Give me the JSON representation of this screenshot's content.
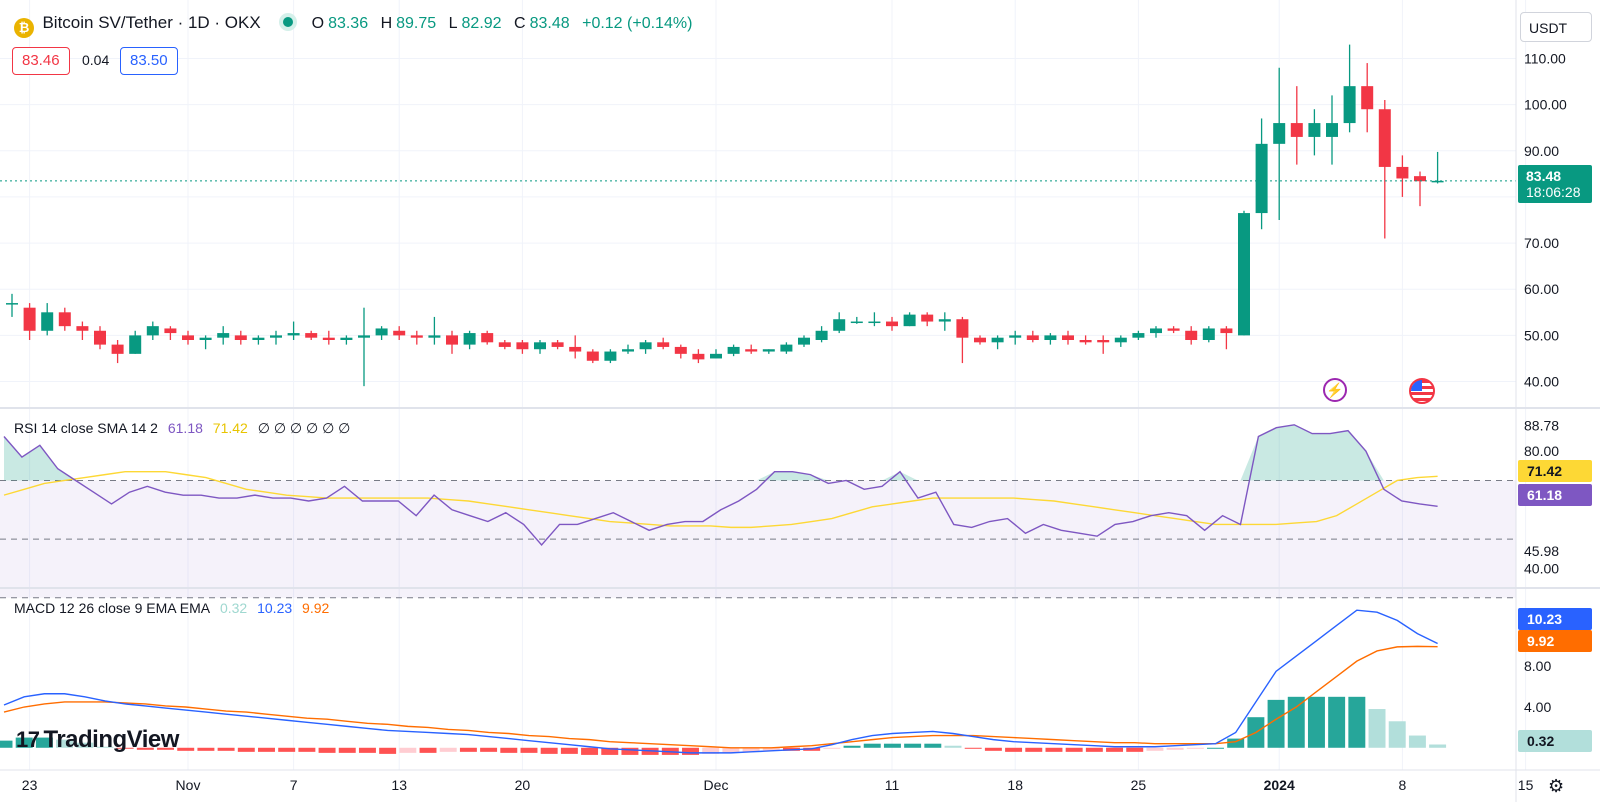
{
  "header": {
    "title": "Bitcoin SV/Tether · 1D · OKX",
    "ohlc": [
      {
        "label": "O",
        "value": "83.36"
      },
      {
        "label": "H",
        "value": "89.75"
      },
      {
        "label": "L",
        "value": "82.92"
      },
      {
        "label": "C",
        "value": "83.48"
      }
    ],
    "change": "+0.12 (+0.14%)",
    "bid": "83.46",
    "spread": "0.04",
    "ask": "83.50",
    "currency": "USDT"
  },
  "price_tag": {
    "price": "83.48",
    "countdown": "18:06:28"
  },
  "rsi_panel": {
    "label": "RSI 14 close SMA 14 2",
    "rsi_value": "61.18",
    "sma_value": "71.42",
    "extra": "∅ ∅ ∅ ∅ ∅ ∅",
    "axis_ticks": [
      "88.78",
      "80.00",
      "45.98",
      "40.00"
    ],
    "tag_rsi": "61.18",
    "tag_sma": "71.42"
  },
  "macd_panel": {
    "label": "MACD 12 26 close 9 EMA EMA",
    "hist_value": "0.32",
    "macd_value": "10.23",
    "signal_value": "9.92",
    "axis_ticks": [
      "8.00",
      "4.00"
    ],
    "tag_macd": "10.23",
    "tag_signal": "9.92",
    "tag_hist": "0.32"
  },
  "watermark": "TradingView",
  "colors": {
    "up": "#089981",
    "down": "#f23645",
    "rsi": "#7e57c2",
    "rsi_sma": "#fdd835",
    "macd": "#2962ff",
    "signal": "#ff6d00",
    "accent": "#2962ff"
  },
  "chart_data": {
    "type": "candlestick",
    "title": "Bitcoin SV/Tether · 1D · OKX",
    "y_axis": {
      "ticks": [
        40,
        50,
        60,
        70,
        80,
        90,
        100,
        110
      ],
      "ylim": [
        36,
        114
      ]
    },
    "x_axis": {
      "ticks": [
        "23",
        "Nov",
        "7",
        "13",
        "20",
        "Dec",
        "11",
        "18",
        "25",
        "2024",
        "8",
        "15"
      ]
    },
    "candles": [
      {
        "date": "2023-10-22",
        "o": 57,
        "h": 59,
        "l": 54,
        "c": 57
      },
      {
        "date": "2023-10-23",
        "o": 56,
        "h": 57,
        "l": 49,
        "c": 51
      },
      {
        "date": "2023-10-24",
        "o": 51,
        "h": 57,
        "l": 50,
        "c": 55
      },
      {
        "date": "2023-10-25",
        "o": 55,
        "h": 56,
        "l": 51,
        "c": 52
      },
      {
        "date": "2023-10-26",
        "o": 52,
        "h": 53,
        "l": 49,
        "c": 51
      },
      {
        "date": "2023-10-27",
        "o": 51,
        "h": 52,
        "l": 47,
        "c": 48
      },
      {
        "date": "2023-10-28",
        "o": 48,
        "h": 49,
        "l": 44,
        "c": 46
      },
      {
        "date": "2023-10-29",
        "o": 46,
        "h": 51,
        "l": 46,
        "c": 50
      },
      {
        "date": "2023-10-30",
        "o": 50,
        "h": 53,
        "l": 49,
        "c": 52
      },
      {
        "date": "2023-10-31",
        "o": 51.5,
        "h": 52,
        "l": 49,
        "c": 50.5
      },
      {
        "date": "2023-11-01",
        "o": 50,
        "h": 51,
        "l": 48,
        "c": 49
      },
      {
        "date": "2023-11-02",
        "o": 49,
        "h": 50,
        "l": 47,
        "c": 49.5
      },
      {
        "date": "2023-11-03",
        "o": 49.5,
        "h": 52,
        "l": 48,
        "c": 50.5
      },
      {
        "date": "2023-11-04",
        "o": 50,
        "h": 51,
        "l": 48,
        "c": 49
      },
      {
        "date": "2023-11-05",
        "o": 49,
        "h": 50,
        "l": 48,
        "c": 49.5
      },
      {
        "date": "2023-11-06",
        "o": 49.5,
        "h": 51,
        "l": 48,
        "c": 50
      },
      {
        "date": "2023-11-07",
        "o": 50,
        "h": 53,
        "l": 49,
        "c": 50.5
      },
      {
        "date": "2023-11-08",
        "o": 50.5,
        "h": 51,
        "l": 49,
        "c": 49.5
      },
      {
        "date": "2023-11-09",
        "o": 49.5,
        "h": 51,
        "l": 48,
        "c": 49
      },
      {
        "date": "2023-11-10",
        "o": 49,
        "h": 50,
        "l": 48,
        "c": 49.5
      },
      {
        "date": "2023-11-11",
        "o": 49.5,
        "h": 56,
        "l": 39,
        "c": 50
      },
      {
        "date": "2023-11-12",
        "o": 50,
        "h": 52,
        "l": 49,
        "c": 51.5
      },
      {
        "date": "2023-11-13",
        "o": 51,
        "h": 52,
        "l": 49,
        "c": 50
      },
      {
        "date": "2023-11-14",
        "o": 50,
        "h": 51,
        "l": 48,
        "c": 49.5
      },
      {
        "date": "2023-11-15",
        "o": 49.5,
        "h": 54,
        "l": 48,
        "c": 50
      },
      {
        "date": "2023-11-16",
        "o": 50,
        "h": 51,
        "l": 46,
        "c": 48
      },
      {
        "date": "2023-11-17",
        "o": 48,
        "h": 51,
        "l": 47,
        "c": 50.5
      },
      {
        "date": "2023-11-18",
        "o": 50.5,
        "h": 51,
        "l": 48,
        "c": 48.5
      },
      {
        "date": "2023-11-19",
        "o": 48.5,
        "h": 49,
        "l": 47,
        "c": 47.5
      },
      {
        "date": "2023-11-20",
        "o": 48.5,
        "h": 49,
        "l": 46,
        "c": 47
      },
      {
        "date": "2023-11-21",
        "o": 47,
        "h": 49,
        "l": 46,
        "c": 48.5
      },
      {
        "date": "2023-11-22",
        "o": 48.5,
        "h": 49,
        "l": 47,
        "c": 47.5
      },
      {
        "date": "2023-11-23",
        "o": 47.5,
        "h": 50,
        "l": 45,
        "c": 46.5
      },
      {
        "date": "2023-11-24",
        "o": 46.5,
        "h": 47,
        "l": 44,
        "c": 44.5
      },
      {
        "date": "2023-11-25",
        "o": 44.5,
        "h": 47,
        "l": 44,
        "c": 46.5
      },
      {
        "date": "2023-11-26",
        "o": 46.5,
        "h": 48,
        "l": 46,
        "c": 47
      },
      {
        "date": "2023-11-27",
        "o": 47,
        "h": 49,
        "l": 46,
        "c": 48.5
      },
      {
        "date": "2023-11-28",
        "o": 48.5,
        "h": 49.5,
        "l": 47,
        "c": 47.5
      },
      {
        "date": "2023-11-29",
        "o": 47.5,
        "h": 48,
        "l": 45,
        "c": 46
      },
      {
        "date": "2023-11-30",
        "o": 46,
        "h": 47,
        "l": 44,
        "c": 44.8
      },
      {
        "date": "2023-12-01",
        "o": 45,
        "h": 47,
        "l": 45,
        "c": 46
      },
      {
        "date": "2023-12-02",
        "o": 46,
        "h": 48,
        "l": 45.5,
        "c": 47.5
      },
      {
        "date": "2023-12-03",
        "o": 47,
        "h": 48,
        "l": 46,
        "c": 46.5
      },
      {
        "date": "2023-12-04",
        "o": 46.5,
        "h": 47,
        "l": 46,
        "c": 47
      },
      {
        "date": "2023-12-05",
        "o": 46.5,
        "h": 48.5,
        "l": 46,
        "c": 48
      },
      {
        "date": "2023-12-06",
        "o": 48,
        "h": 50,
        "l": 47.5,
        "c": 49.5
      },
      {
        "date": "2023-12-07",
        "o": 49,
        "h": 52,
        "l": 48.5,
        "c": 51
      },
      {
        "date": "2023-12-08",
        "o": 51,
        "h": 55,
        "l": 50.5,
        "c": 53.5
      },
      {
        "date": "2023-12-09",
        "o": 53,
        "h": 54,
        "l": 52.5,
        "c": 53
      },
      {
        "date": "2023-12-10",
        "o": 53,
        "h": 55,
        "l": 52,
        "c": 53
      },
      {
        "date": "2023-12-11",
        "o": 53,
        "h": 54,
        "l": 51,
        "c": 52
      },
      {
        "date": "2023-12-12",
        "o": 52,
        "h": 55,
        "l": 52,
        "c": 54.5
      },
      {
        "date": "2023-12-13",
        "o": 54.5,
        "h": 55,
        "l": 52,
        "c": 53
      },
      {
        "date": "2023-12-14",
        "o": 53,
        "h": 55,
        "l": 51,
        "c": 53.5
      },
      {
        "date": "2023-12-15",
        "o": 53.5,
        "h": 54,
        "l": 44,
        "c": 49.5
      },
      {
        "date": "2023-12-16",
        "o": 49.5,
        "h": 50,
        "l": 48,
        "c": 48.5
      },
      {
        "date": "2023-12-17",
        "o": 48.5,
        "h": 50,
        "l": 47,
        "c": 49.5
      },
      {
        "date": "2023-12-18",
        "o": 49.5,
        "h": 51,
        "l": 48,
        "c": 50
      },
      {
        "date": "2023-12-19",
        "o": 50,
        "h": 51,
        "l": 48.5,
        "c": 49
      },
      {
        "date": "2023-12-20",
        "o": 49,
        "h": 50.5,
        "l": 48,
        "c": 50
      },
      {
        "date": "2023-12-21",
        "o": 50,
        "h": 51,
        "l": 48,
        "c": 49
      },
      {
        "date": "2023-12-22",
        "o": 49,
        "h": 50,
        "l": 48,
        "c": 48.5
      },
      {
        "date": "2023-12-23",
        "o": 49,
        "h": 50,
        "l": 46,
        "c": 48.5
      },
      {
        "date": "2023-12-24",
        "o": 48.5,
        "h": 50,
        "l": 47.5,
        "c": 49.5
      },
      {
        "date": "2023-12-25",
        "o": 49.5,
        "h": 51,
        "l": 49,
        "c": 50.5
      },
      {
        "date": "2023-12-26",
        "o": 50.5,
        "h": 52,
        "l": 49.5,
        "c": 51.5
      },
      {
        "date": "2023-12-27",
        "o": 51.5,
        "h": 52,
        "l": 50.5,
        "c": 51
      },
      {
        "date": "2023-12-28",
        "o": 51,
        "h": 52,
        "l": 48,
        "c": 49
      },
      {
        "date": "2023-12-29",
        "o": 49,
        "h": 52,
        "l": 48.5,
        "c": 51.5
      },
      {
        "date": "2023-12-30",
        "o": 51.5,
        "h": 52,
        "l": 47,
        "c": 50.5
      },
      {
        "date": "2023-12-31",
        "o": 50,
        "h": 77,
        "l": 50,
        "c": 76.5
      },
      {
        "date": "2024-01-01",
        "o": 76.5,
        "h": 97,
        "l": 73,
        "c": 91.5
      },
      {
        "date": "2024-01-02",
        "o": 91.5,
        "h": 108,
        "l": 75,
        "c": 96
      },
      {
        "date": "2024-01-03",
        "o": 96,
        "h": 104,
        "l": 87,
        "c": 93
      },
      {
        "date": "2024-01-04",
        "o": 93,
        "h": 99,
        "l": 89,
        "c": 96
      },
      {
        "date": "2024-01-05",
        "o": 93,
        "h": 102,
        "l": 87,
        "c": 96
      },
      {
        "date": "2024-01-06",
        "o": 96,
        "h": 113,
        "l": 94,
        "c": 104
      },
      {
        "date": "2024-01-07",
        "o": 104,
        "h": 109,
        "l": 94,
        "c": 99
      },
      {
        "date": "2024-01-08",
        "o": 99,
        "h": 101,
        "l": 71,
        "c": 86.5
      },
      {
        "date": "2024-01-09",
        "o": 86.5,
        "h": 89,
        "l": 80,
        "c": 84
      },
      {
        "date": "2024-01-10",
        "o": 84.5,
        "h": 85.5,
        "l": 78,
        "c": 83.4
      },
      {
        "date": "2024-01-11",
        "o": 83.36,
        "h": 89.75,
        "l": 82.92,
        "c": 83.48
      }
    ],
    "rsi": {
      "axis_ticks": [
        40,
        45.98,
        80,
        88.78
      ],
      "bands": [
        30,
        50,
        70
      ],
      "rsi_series": [
        85,
        78,
        82,
        74,
        70,
        66,
        62,
        66,
        68,
        66,
        65,
        65,
        64,
        64,
        65,
        64,
        64,
        63,
        64,
        68,
        63,
        63,
        63,
        58,
        65,
        60,
        58,
        56,
        59,
        55,
        48,
        55,
        55,
        57,
        59,
        56,
        53,
        55,
        56,
        56,
        60,
        63,
        67,
        73,
        73,
        72,
        69,
        70,
        67,
        68,
        73,
        64,
        66,
        55,
        54,
        56,
        57,
        52,
        55,
        53,
        52,
        51,
        55,
        56,
        58,
        59,
        58,
        53,
        58,
        55,
        85,
        88,
        89,
        86,
        86,
        87,
        80,
        67,
        63,
        62,
        61.18
      ],
      "sma_series": [
        65,
        67,
        69,
        70,
        71,
        72,
        73,
        73,
        73,
        72,
        71,
        69,
        67,
        66,
        65,
        64.5,
        64,
        64,
        64,
        64,
        64,
        64,
        63.5,
        63,
        62,
        61,
        60,
        59,
        58,
        57,
        56,
        55.5,
        55,
        54.5,
        54.5,
        54.5,
        54,
        54,
        54.5,
        55,
        56,
        57,
        59,
        61,
        62,
        63,
        64,
        64,
        64,
        64,
        64,
        63.5,
        63,
        62,
        61,
        60,
        59,
        58,
        57,
        56,
        55,
        55,
        55,
        55,
        55.5,
        56,
        58,
        62,
        66,
        70,
        71,
        71.42
      ]
    },
    "macd": {
      "axis_ticks": [
        4,
        8
      ],
      "macd_series": [
        4.2,
        5.0,
        5.3,
        5.3,
        5.0,
        4.6,
        4.3,
        4.1,
        3.9,
        3.7,
        3.5,
        3.3,
        3.1,
        2.9,
        2.7,
        2.5,
        2.3,
        2.1,
        1.9,
        1.7,
        1.6,
        1.5,
        1.4,
        1.3,
        1.1,
        0.9,
        0.7,
        0.5,
        0.3,
        0.1,
        -0.1,
        -0.2,
        -0.3,
        -0.4,
        -0.5,
        -0.5,
        -0.5,
        -0.4,
        -0.3,
        -0.2,
        -0.1,
        0.3,
        0.8,
        1.2,
        1.4,
        1.5,
        1.6,
        1.4,
        1.1,
        0.8,
        0.6,
        0.5,
        0.4,
        0.3,
        0.2,
        0.1,
        0.1,
        0.1,
        0.2,
        0.3,
        0.4,
        1.5,
        4.5,
        7.5,
        9.0,
        10.5,
        12.0,
        13.5,
        13.3,
        12.5,
        11.2,
        10.23
      ],
      "signal_series": [
        3.5,
        4.0,
        4.3,
        4.5,
        4.5,
        4.5,
        4.4,
        4.3,
        4.1,
        4.0,
        3.8,
        3.6,
        3.5,
        3.3,
        3.1,
        2.9,
        2.8,
        2.6,
        2.4,
        2.3,
        2.1,
        2.0,
        1.8,
        1.7,
        1.5,
        1.4,
        1.2,
        1.1,
        0.9,
        0.8,
        0.6,
        0.5,
        0.4,
        0.3,
        0.2,
        0.1,
        0.0,
        0.0,
        0.0,
        0.1,
        0.2,
        0.4,
        0.6,
        0.8,
        1.0,
        1.1,
        1.2,
        1.2,
        1.2,
        1.1,
        1.0,
        0.9,
        0.8,
        0.7,
        0.6,
        0.5,
        0.5,
        0.4,
        0.4,
        0.4,
        0.4,
        0.6,
        1.5,
        2.8,
        4.0,
        5.5,
        7.0,
        8.5,
        9.5,
        9.9,
        9.95,
        9.92
      ],
      "histogram": [
        0.7,
        1.0,
        1.0,
        0.8,
        0.5,
        0.1,
        -0.1,
        -0.2,
        -0.2,
        -0.3,
        -0.3,
        -0.3,
        -0.4,
        -0.4,
        -0.4,
        -0.4,
        -0.5,
        -0.5,
        -0.5,
        -0.6,
        -0.5,
        -0.5,
        -0.4,
        -0.4,
        -0.4,
        -0.5,
        -0.5,
        -0.6,
        -0.6,
        -0.7,
        -0.7,
        -0.7,
        -0.7,
        -0.7,
        -0.7,
        -0.6,
        -0.5,
        -0.4,
        -0.3,
        -0.3,
        -0.3,
        -0.1,
        0.2,
        0.4,
        0.4,
        0.4,
        0.4,
        0.2,
        -0.1,
        -0.3,
        -0.4,
        -0.4,
        -0.4,
        -0.4,
        -0.4,
        -0.4,
        -0.4,
        -0.3,
        -0.2,
        -0.1,
        0.0,
        0.9,
        3.0,
        4.7,
        5.0,
        5.0,
        5.0,
        5.0,
        3.8,
        2.6,
        1.2,
        0.32
      ]
    }
  }
}
